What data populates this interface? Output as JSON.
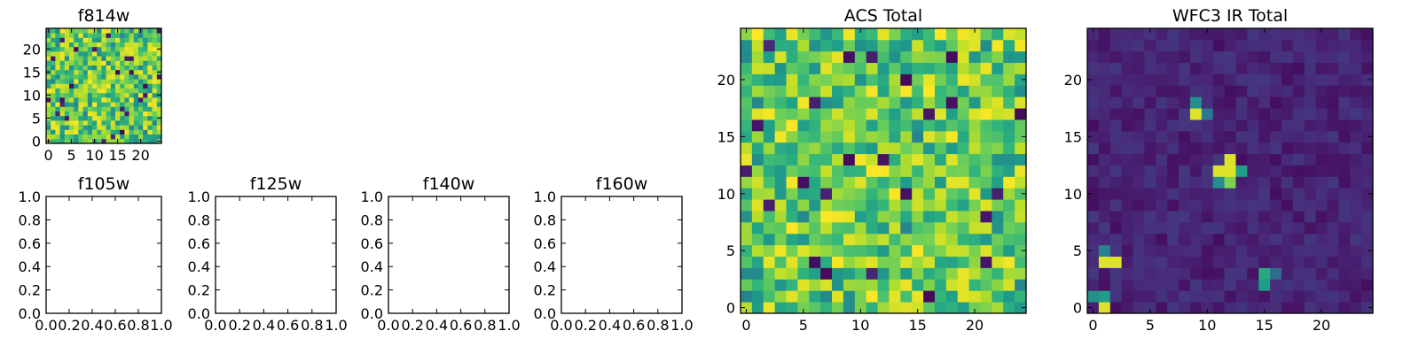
{
  "chart_data": [
    {
      "type": "heatmap",
      "title": "f814w",
      "xlim": [
        -0.5,
        24.5
      ],
      "ylim": [
        -0.5,
        24.5
      ],
      "xticks": [
        "0",
        "5",
        "10",
        "15",
        "20"
      ],
      "yticks": [
        "0",
        "5",
        "10",
        "15",
        "20"
      ],
      "colormap": "viridis",
      "grid_size": 25,
      "grid": false
    },
    {
      "type": "line",
      "title": "f105w",
      "xlim": [
        0.0,
        1.0
      ],
      "ylim": [
        0.0,
        1.0
      ],
      "xticks": [
        "0.0",
        "0.2",
        "0.4",
        "0.6",
        "0.8",
        "1.0"
      ],
      "yticks": [
        "0.0",
        "0.2",
        "0.4",
        "0.6",
        "0.8",
        "1.0"
      ],
      "series": [],
      "grid": false
    },
    {
      "type": "line",
      "title": "f125w",
      "xlim": [
        0.0,
        1.0
      ],
      "ylim": [
        0.0,
        1.0
      ],
      "xticks": [
        "0.0",
        "0.2",
        "0.4",
        "0.6",
        "0.8",
        "1.0"
      ],
      "yticks": [
        "0.0",
        "0.2",
        "0.4",
        "0.6",
        "0.8",
        "1.0"
      ],
      "series": [],
      "grid": false
    },
    {
      "type": "line",
      "title": "f140w",
      "xlim": [
        0.0,
        1.0
      ],
      "ylim": [
        0.0,
        1.0
      ],
      "xticks": [
        "0.0",
        "0.2",
        "0.4",
        "0.6",
        "0.8",
        "1.0"
      ],
      "yticks": [
        "0.0",
        "0.2",
        "0.4",
        "0.6",
        "0.8",
        "1.0"
      ],
      "series": [],
      "grid": false
    },
    {
      "type": "line",
      "title": "f160w",
      "xlim": [
        0.0,
        1.0
      ],
      "ylim": [
        0.0,
        1.0
      ],
      "xticks": [
        "0.0",
        "0.2",
        "0.4",
        "0.6",
        "0.8",
        "1.0"
      ],
      "yticks": [
        "0.0",
        "0.2",
        "0.4",
        "0.6",
        "0.8",
        "1.0"
      ],
      "series": [],
      "grid": false
    },
    {
      "type": "heatmap",
      "title": "ACS Total",
      "xlim": [
        -0.5,
        24.5
      ],
      "ylim": [
        -0.5,
        24.5
      ],
      "xticks": [
        "0",
        "5",
        "10",
        "15",
        "20"
      ],
      "yticks": [
        "0",
        "5",
        "10",
        "15",
        "20"
      ],
      "colormap": "viridis",
      "grid_size": 25,
      "grid": false
    },
    {
      "type": "heatmap",
      "title": "WFC3 IR Total",
      "xlim": [
        -0.5,
        24.5
      ],
      "ylim": [
        -0.5,
        24.5
      ],
      "xticks": [
        "0",
        "5",
        "10",
        "15",
        "20"
      ],
      "yticks": [
        "0",
        "5",
        "10",
        "15",
        "20"
      ],
      "colormap": "viridis",
      "grid_size": 25,
      "grid": false,
      "bright_spots": [
        {
          "x": 9,
          "y": 17,
          "value": 0.95
        },
        {
          "x": 9,
          "y": 18,
          "value": 0.5
        },
        {
          "x": 10,
          "y": 17,
          "value": 0.4
        },
        {
          "x": 12,
          "y": 13,
          "value": 0.95
        },
        {
          "x": 11,
          "y": 12,
          "value": 0.95
        },
        {
          "x": 12,
          "y": 12,
          "value": 0.95
        },
        {
          "x": 13,
          "y": 12,
          "value": 0.55
        },
        {
          "x": 11,
          "y": 11,
          "value": 0.5
        },
        {
          "x": 12,
          "y": 11,
          "value": 0.8
        },
        {
          "x": 1,
          "y": 4,
          "value": 0.95
        },
        {
          "x": 2,
          "y": 4,
          "value": 0.95
        },
        {
          "x": 1,
          "y": 5,
          "value": 0.45
        },
        {
          "x": 15,
          "y": 3,
          "value": 0.6
        },
        {
          "x": 15,
          "y": 2,
          "value": 0.55
        },
        {
          "x": 16,
          "y": 3,
          "value": 0.35
        },
        {
          "x": 1,
          "y": 0,
          "value": 0.95
        },
        {
          "x": 0,
          "y": 1,
          "value": 0.5
        },
        {
          "x": 1,
          "y": 1,
          "value": 0.55
        }
      ]
    }
  ]
}
